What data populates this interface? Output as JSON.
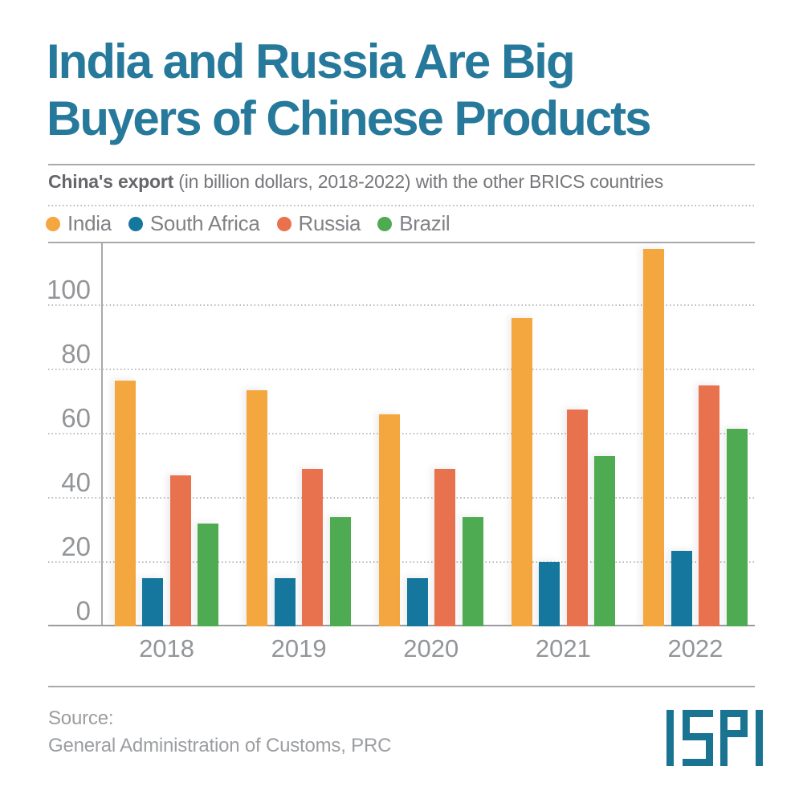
{
  "header": {
    "title_line1": "India and Russia Are Big",
    "title_line2": "Buyers of Chinese Products",
    "subtitle_bold": "China's export",
    "subtitle_rest": " (in billion dollars, 2018-2022) with the other BRICS countries"
  },
  "chart_data": {
    "type": "bar",
    "title": "India and Russia Are Big Buyers of Chinese Products",
    "subtitle": "China's export (in billion dollars, 2018-2022) with the other BRICS countries",
    "categories": [
      "2018",
      "2019",
      "2020",
      "2021",
      "2022"
    ],
    "series": [
      {
        "name": "India",
        "color": "#F4A63F",
        "values": [
          76.5,
          73.5,
          66,
          96,
          117.5
        ]
      },
      {
        "name": "South Africa",
        "color": "#16779E",
        "values": [
          15,
          15,
          15,
          20,
          23.5
        ]
      },
      {
        "name": "Russia",
        "color": "#E8714E",
        "values": [
          47,
          49,
          49,
          67.5,
          75
        ]
      },
      {
        "name": "Brazil",
        "color": "#4EAB51",
        "values": [
          32,
          34,
          34,
          53,
          61.5
        ]
      }
    ],
    "xlabel": "",
    "ylabel": "",
    "yticks": [
      0,
      20,
      40,
      60,
      80,
      100
    ],
    "ylim": [
      0,
      119.5
    ],
    "grid": true,
    "gridline_style": "dotted",
    "legend_position": "top-left"
  },
  "footer": {
    "source_label": "Source:",
    "source_name": "General Administration of Customs, PRC",
    "brand": "ISPI"
  },
  "colors": {
    "title_text": "#26799B",
    "subtitle_text": "#76777A",
    "axis_text": "#939598",
    "rule_line": "#A7A9AC",
    "footer_text": "#9B9DA0",
    "brand_teal": "#1A7391"
  }
}
